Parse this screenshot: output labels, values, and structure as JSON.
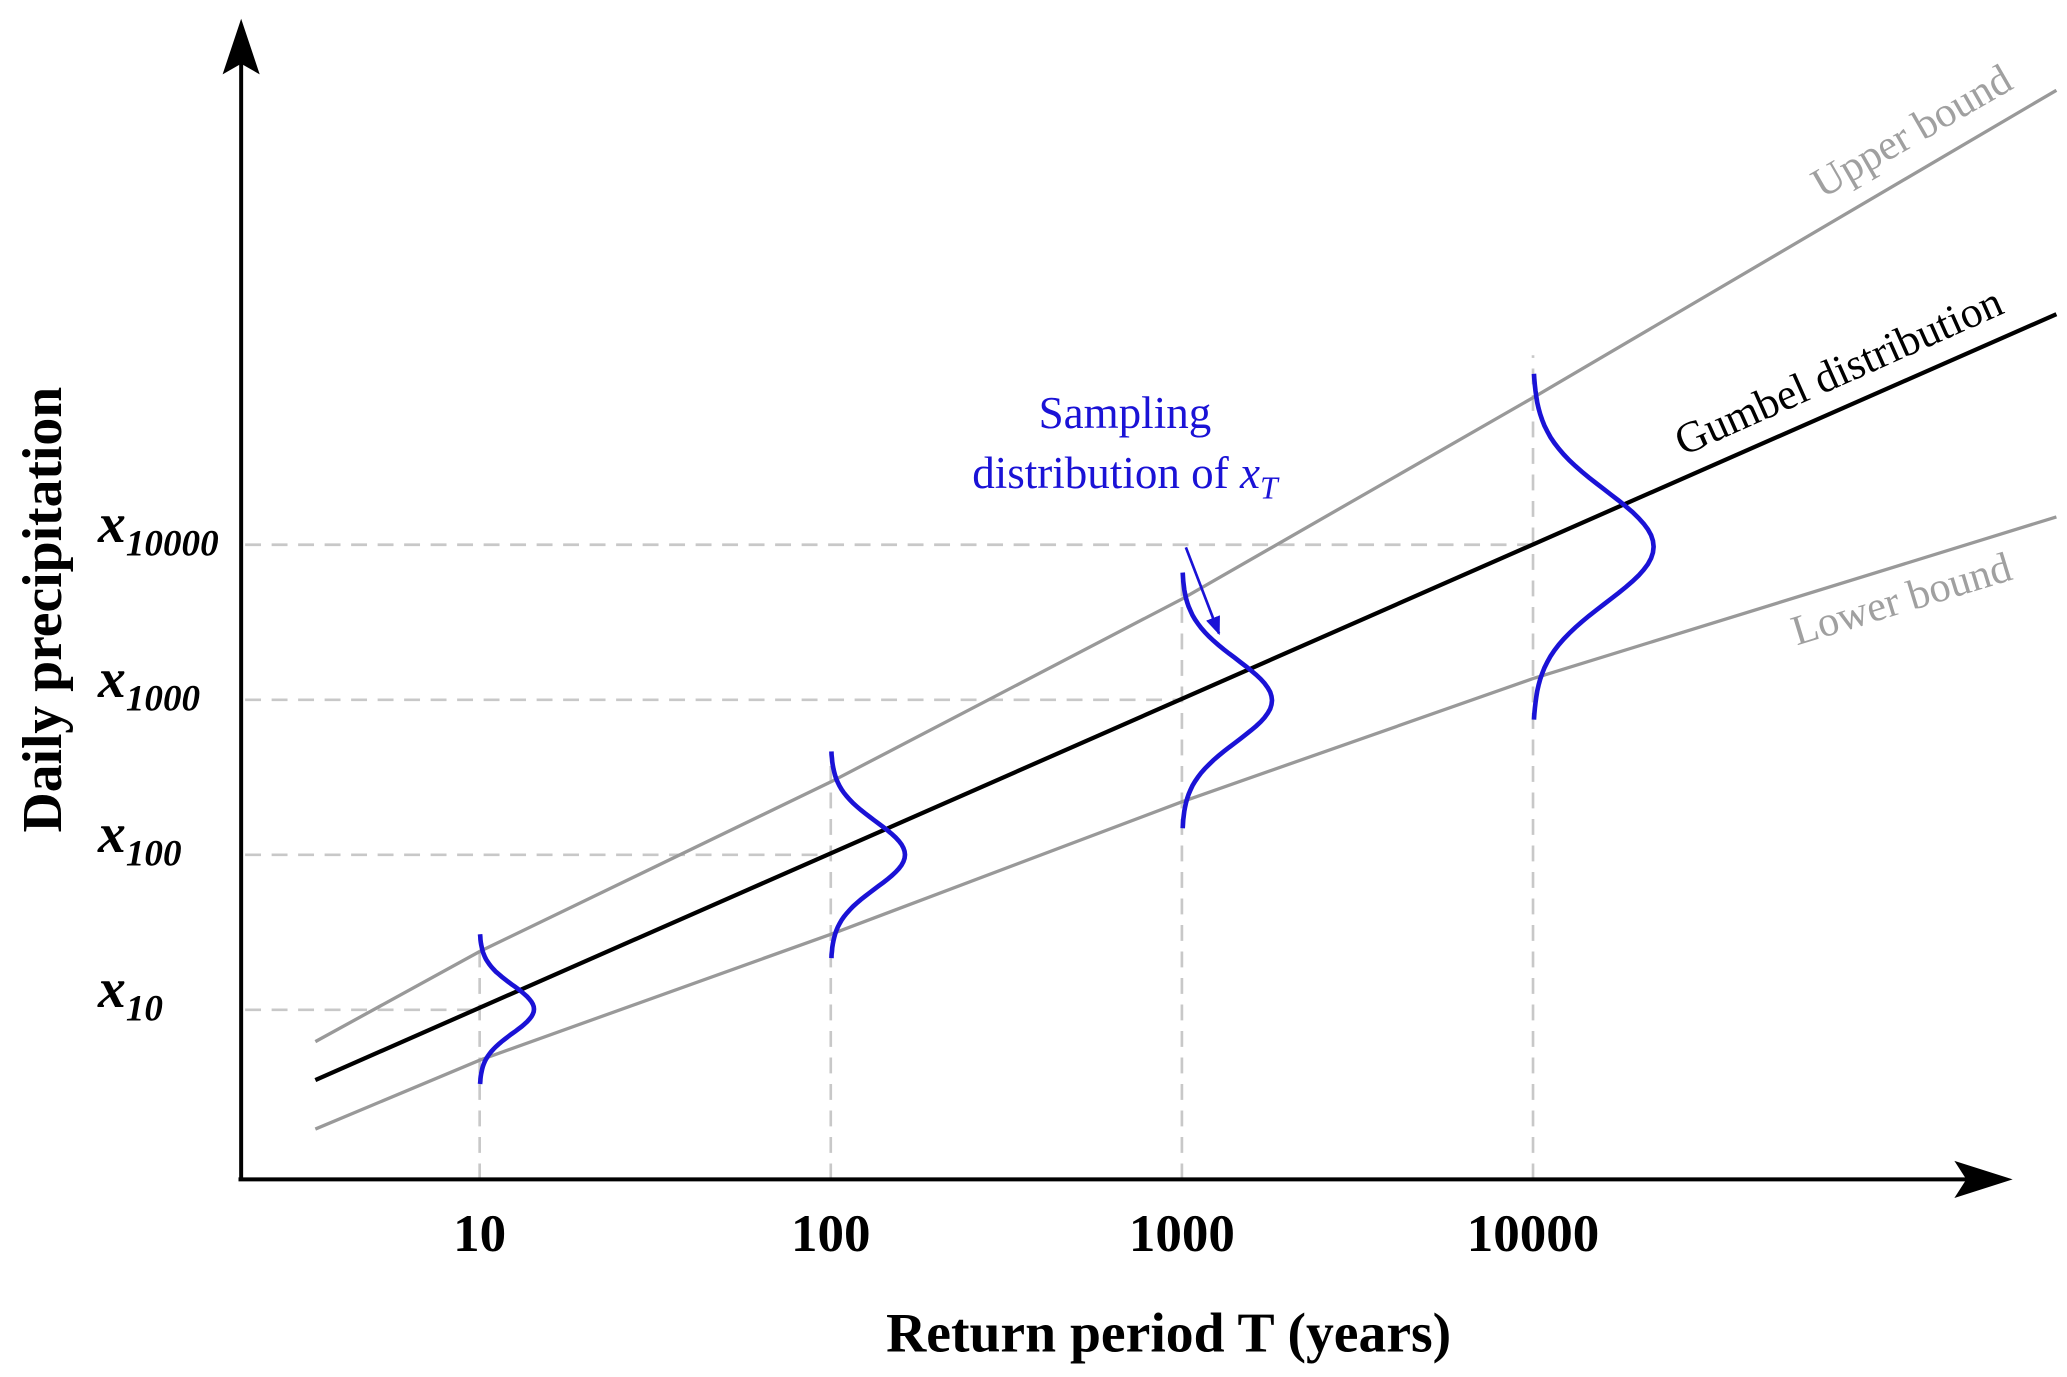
{
  "chart_data": {
    "type": "line",
    "title": "",
    "xlabel": "Return period T (years)",
    "ylabel": "Daily precipitation",
    "x_scale": "log",
    "x_ticks": [
      "10",
      "100",
      "1000",
      "10000"
    ],
    "y_ticks": [
      {
        "base": "x",
        "sub": "10"
      },
      {
        "base": "x",
        "sub": "100"
      },
      {
        "base": "x",
        "sub": "1000"
      },
      {
        "base": "x",
        "sub": "10000"
      }
    ],
    "series": [
      {
        "name": "Gumbel distribution",
        "color": "#000000"
      },
      {
        "name": "Upper bound",
        "color": "#999999"
      },
      {
        "name": "Lower bound",
        "color": "#999999"
      }
    ],
    "sampling_distributions_at": [
      "10",
      "100",
      "1000",
      "10000"
    ],
    "annotation": {
      "line1": "Sampling",
      "line2": "distribution of ",
      "var": "x",
      "var_sub": "T",
      "color": "#1a12d6"
    },
    "grid": "dashed guide lines at tick values"
  }
}
